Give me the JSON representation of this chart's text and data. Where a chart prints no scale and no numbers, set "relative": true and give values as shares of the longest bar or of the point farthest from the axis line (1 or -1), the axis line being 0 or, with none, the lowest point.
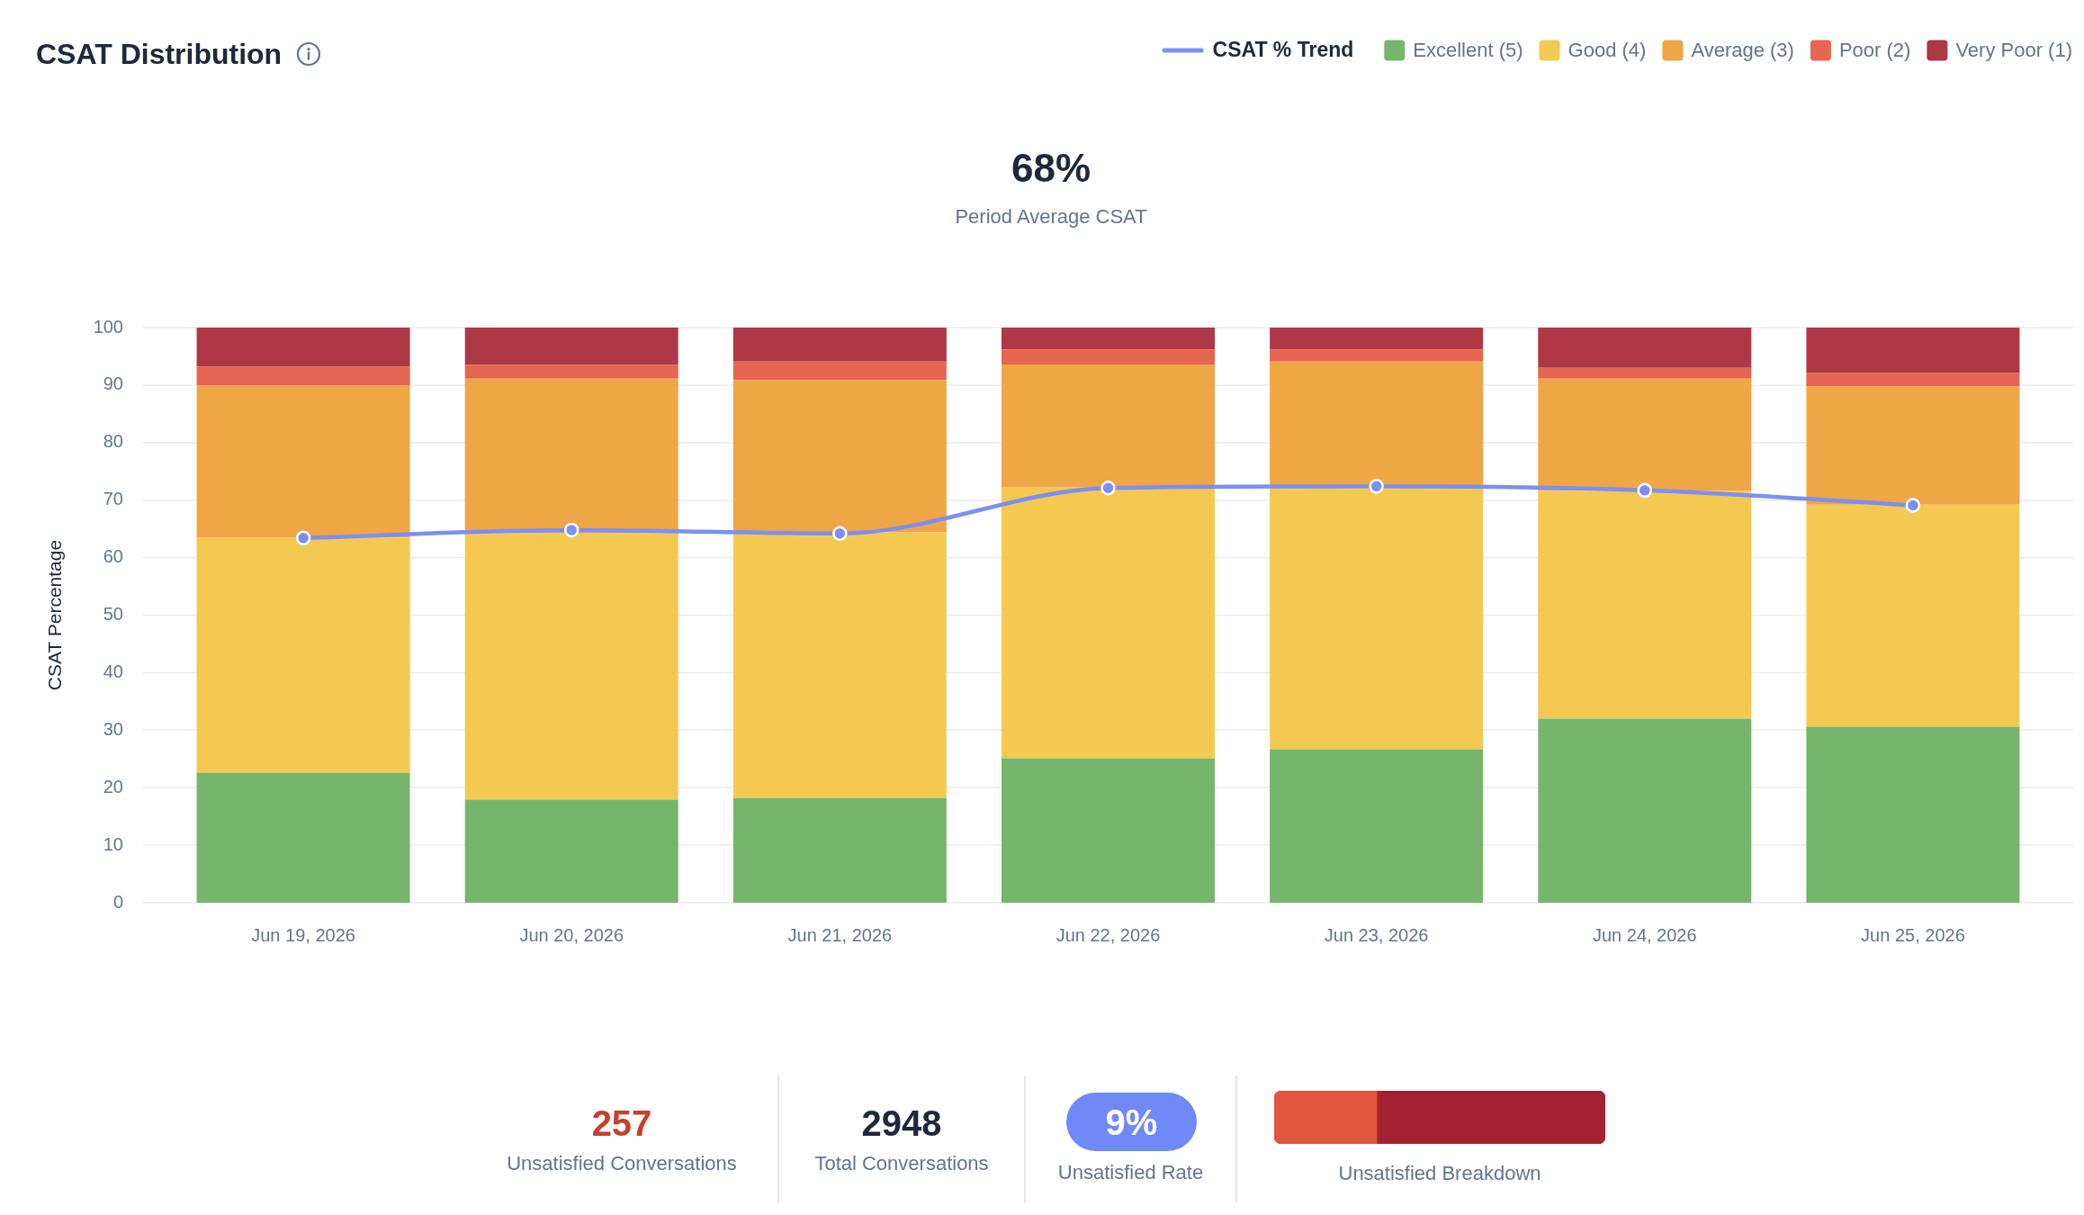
{
  "chart_data": [
    {
      "type": "bar",
      "title": "CSAT Distribution",
      "ylabel": "CSAT Percentage",
      "annotations": [
        "68%",
        "Period Average CSAT"
      ],
      "categories": [
        "Jun 19, 2026",
        "Jun 20, 2026",
        "Jun 21, 2026",
        "Jun 22, 2026",
        "Jun 23, 2026",
        "Jun 24, 2026",
        "Jun 25, 2026"
      ],
      "series": [
        {
          "name": "CSAT % Trend",
          "type": "line",
          "color": "#7b8ff5",
          "values": [
            63.4,
            64.8,
            64.2,
            72.1,
            72.4,
            71.7,
            69.1
          ]
        },
        {
          "name": "Excellent (5)",
          "color": "#76b56c",
          "values": [
            22.6,
            17.9,
            18.2,
            25.1,
            26.7,
            32.0,
            30.6
          ]
        },
        {
          "name": "Good (4)",
          "color": "#f4c952",
          "values": [
            40.9,
            46.3,
            46.2,
            47.1,
            45.6,
            39.6,
            38.6
          ]
        },
        {
          "name": "Average (3)",
          "color": "#efa645",
          "values": [
            26.4,
            26.9,
            26.5,
            21.4,
            21.8,
            19.5,
            20.6
          ]
        },
        {
          "name": "Poor (2)",
          "color": "#e66551",
          "values": [
            3.3,
            2.4,
            3.2,
            2.6,
            2.1,
            1.9,
            2.3
          ]
        },
        {
          "name": "Very Poor (1)",
          "color": "#ae3846",
          "values": [
            6.8,
            6.5,
            5.9,
            3.8,
            3.8,
            7.0,
            7.9
          ]
        }
      ],
      "stacked": true,
      "ylim": [
        0,
        100
      ],
      "yticks": [
        0,
        10,
        20,
        30,
        40,
        50,
        60,
        70,
        80,
        90,
        100
      ],
      "grid": "y",
      "legend": "top right",
      "marker": "circle"
    },
    {
      "type": "other",
      "annotations": [
        "257",
        "Unsatisfied Conversations",
        "2948",
        "Total Conversations",
        "9%",
        "Unsatisfied Rate"
      ]
    },
    {
      "type": "bar",
      "orientation": "horizontal",
      "stacked": true,
      "relative": true,
      "categories": [
        null
      ],
      "xlabel": "Unsatisfied Breakdown",
      "series": [
        {
          "color": "#e2553e",
          "values": [
            0.31
          ]
        },
        {
          "color": "#a32231",
          "values": [
            0.69
          ]
        }
      ]
    }
  ]
}
